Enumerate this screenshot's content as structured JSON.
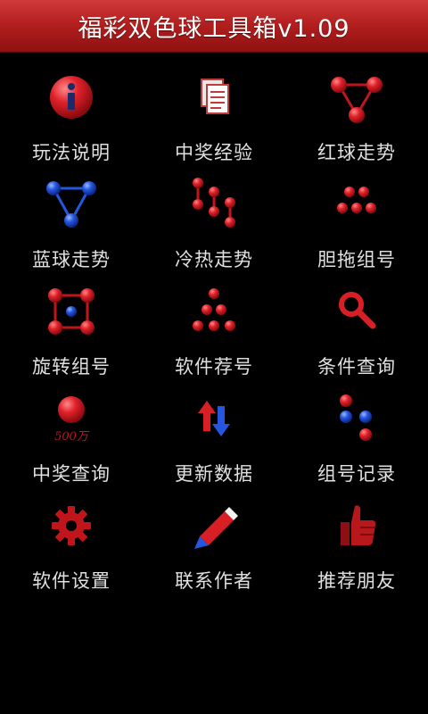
{
  "app": {
    "title": "福彩双色球工具箱v1.09"
  },
  "colors": {
    "accent": "#c0161b",
    "ball_red": "#d81f26",
    "ball_blue": "#1f4fd8"
  },
  "menu": [
    {
      "label": "玩法说明",
      "icon": "info-icon"
    },
    {
      "label": "中奖经验",
      "icon": "documents-icon"
    },
    {
      "label": "红球走势",
      "icon": "red-triangle-icon"
    },
    {
      "label": "蓝球走势",
      "icon": "blue-triangle-icon"
    },
    {
      "label": "冷热走势",
      "icon": "hot-cold-chain-icon"
    },
    {
      "label": "胆拖组号",
      "icon": "balls-group-icon"
    },
    {
      "label": "旋转组号",
      "icon": "rotate-square-icon"
    },
    {
      "label": "软件荐号",
      "icon": "pyramid-balls-icon"
    },
    {
      "label": "条件查询",
      "icon": "search-icon"
    },
    {
      "label": "中奖查询",
      "icon": "prize-ball-icon",
      "icon_text": "500万"
    },
    {
      "label": "更新数据",
      "icon": "sync-arrows-icon"
    },
    {
      "label": "组号记录",
      "icon": "record-balls-icon"
    },
    {
      "label": "软件设置",
      "icon": "gear-icon"
    },
    {
      "label": "联系作者",
      "icon": "pencil-icon"
    },
    {
      "label": "推荐朋友",
      "icon": "thumbs-up-icon"
    }
  ]
}
